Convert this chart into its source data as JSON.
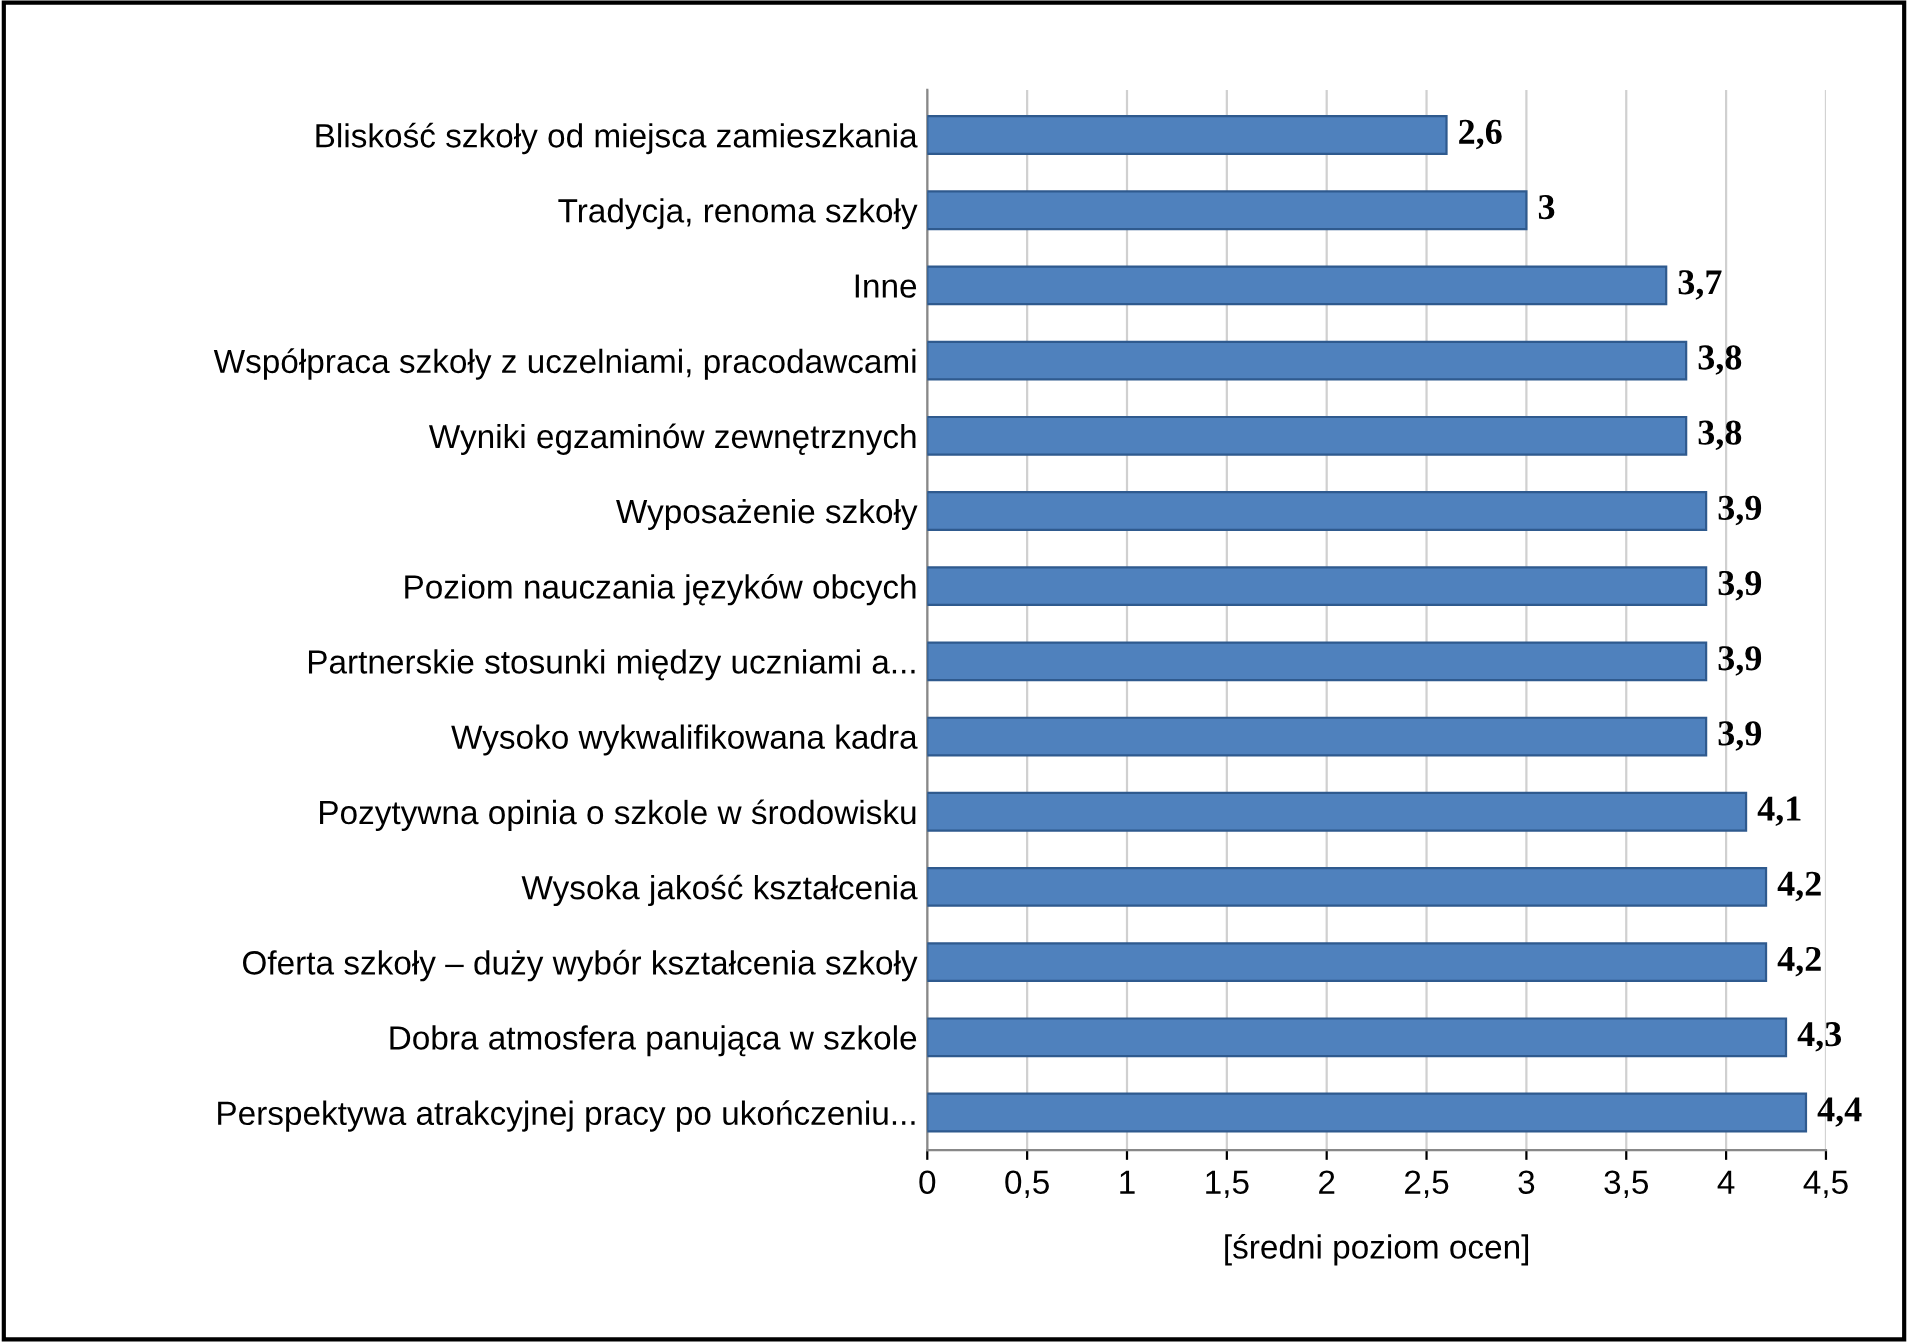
{
  "chart_data": {
    "type": "bar",
    "orientation": "horizontal",
    "xlabel": "[średni poziom ocen]",
    "categories": [
      "Bliskość szkoły od miejsca zamieszkania",
      "Tradycja, renoma szkoły",
      "Inne",
      "Współpraca szkoły z uczelniami, pracodawcami",
      "Wyniki egzaminów zewnętrznych",
      "Wyposażenie szkoły",
      "Poziom nauczania języków obcych",
      "Partnerskie stosunki między uczniami a...",
      "Wysoko wykwalifikowana kadra",
      "Pozytywna opinia o szkole w środowisku",
      "Wysoka jakość kształcenia",
      "Oferta szkoły – duży wybór kształcenia szkoły",
      "Dobra atmosfera panująca w szkole",
      "Perspektywa atrakcyjnej pracy po ukończeniu..."
    ],
    "values": [
      2.6,
      3,
      3.7,
      3.8,
      3.8,
      3.9,
      3.9,
      3.9,
      3.9,
      4.1,
      4.2,
      4.2,
      4.3,
      4.4
    ],
    "value_labels": [
      "2,6",
      "3",
      "3,7",
      "3,8",
      "3,8",
      "3,9",
      "3,9",
      "3,9",
      "3,9",
      "4,1",
      "4,2",
      "4,2",
      "4,3",
      "4,4"
    ],
    "color": "#4f81bd",
    "xlim": [
      0,
      4.5
    ],
    "xticks": [
      0,
      {
        "value": 0.5,
        "label": "0,5"
      },
      1,
      {
        "value": 1.5,
        "label": "1,5"
      },
      2,
      {
        "value": 2.5,
        "label": "2,5"
      },
      3,
      {
        "value": 3.5,
        "label": "3,5"
      },
      4,
      {
        "value": 4.5,
        "label": "4,5"
      }
    ],
    "grid": "x"
  }
}
